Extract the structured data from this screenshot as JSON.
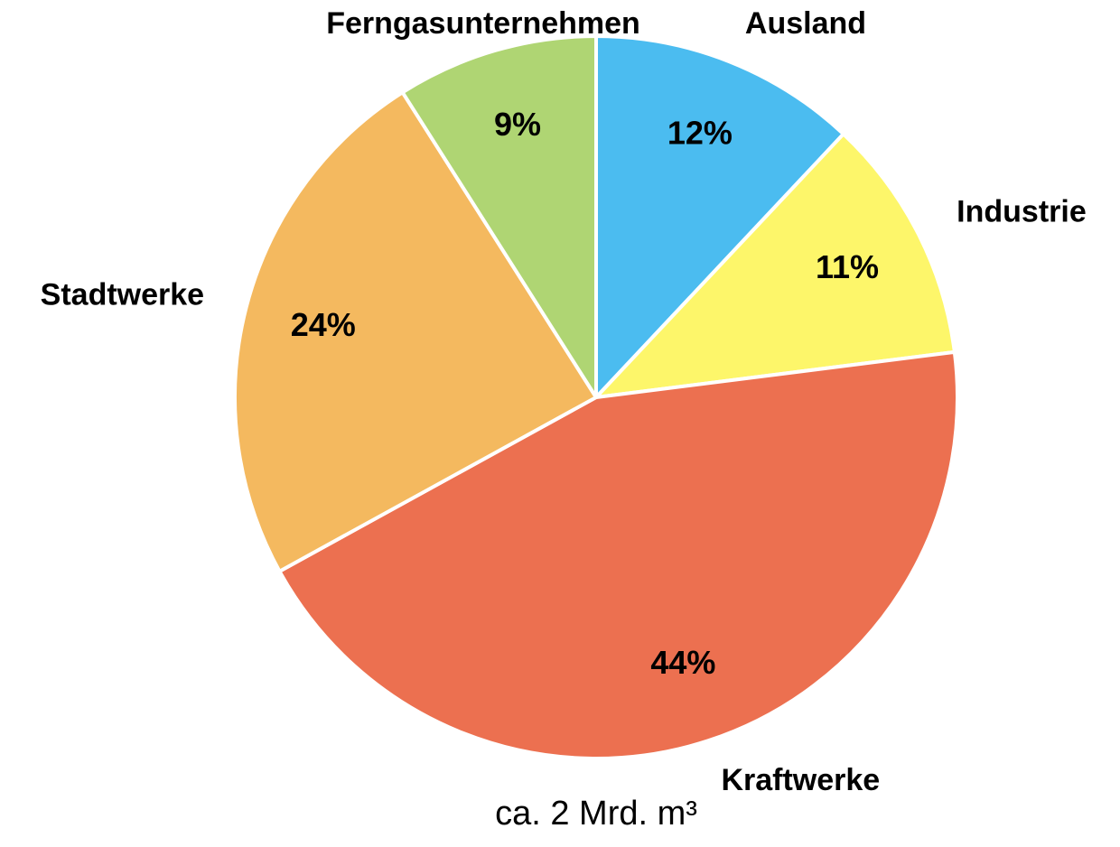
{
  "chart_data": {
    "type": "pie",
    "categories": [
      "Ausland",
      "Industrie",
      "Kraftwerke",
      "Stadtwerke",
      "Ferngasunternehmen"
    ],
    "values": [
      12,
      11,
      44,
      24,
      9
    ],
    "value_labels": [
      "12%",
      "11%",
      "44%",
      "24%",
      "9%"
    ],
    "colors": [
      "#4bbcf0",
      "#fdf66a",
      "#ec7050",
      "#f4b95f",
      "#afd573"
    ],
    "caption": "ca. 2 Mrd. m³"
  }
}
